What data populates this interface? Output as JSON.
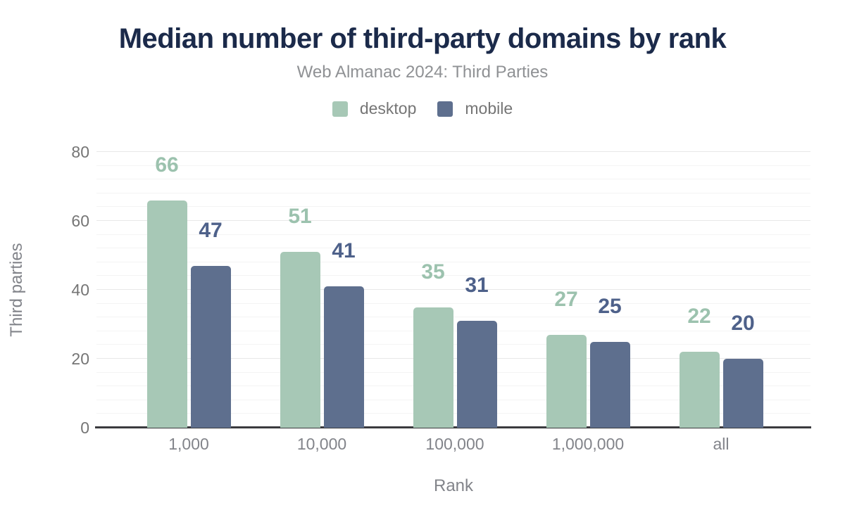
{
  "chart_data": {
    "type": "bar",
    "title": "Median number of third-party domains by rank",
    "subtitle": "Web Almanac 2024: Third Parties",
    "xlabel": "Rank",
    "ylabel": "Third parties",
    "categories": [
      "1,000",
      "10,000",
      "100,000",
      "1,000,000",
      "all"
    ],
    "series": [
      {
        "name": "desktop",
        "color": "#a7c8b6",
        "label_color": "#9cc2ae",
        "values": [
          66,
          51,
          35,
          27,
          22
        ]
      },
      {
        "name": "mobile",
        "color": "#5e6f8e",
        "label_color": "#4e618a",
        "values": [
          47,
          41,
          31,
          25,
          20
        ]
      }
    ],
    "ylim": [
      0,
      80
    ],
    "y_major_step": 20,
    "y_minor_step": 4,
    "y_tick_labels": [
      "0",
      "20",
      "40",
      "60",
      "80"
    ],
    "legend_position": "top",
    "grid": true,
    "title_color": "#1b2a4a",
    "axis_line_color": "#3a3a3e"
  }
}
